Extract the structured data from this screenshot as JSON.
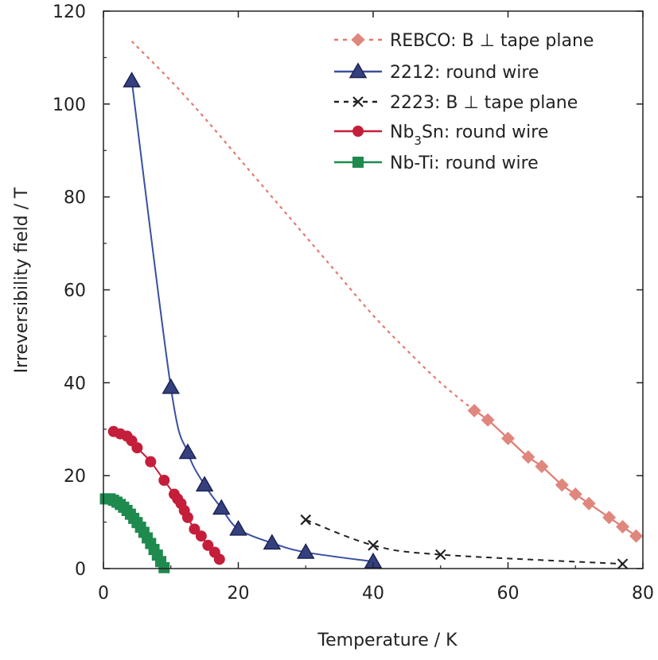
{
  "chart_data": {
    "type": "line",
    "xlabel": "Temperature / K",
    "ylabel": "Irreversibility field / T",
    "xlim": [
      0,
      80
    ],
    "ylim": [
      0,
      120
    ],
    "xticks": [
      "0",
      "20",
      "40",
      "60",
      "80"
    ],
    "yticks": [
      "0",
      "20",
      "40",
      "60",
      "80",
      "100",
      "120"
    ],
    "grid": false,
    "legend_position": "top-right",
    "series": [
      {
        "name": "REBCO: B ⊥ tape plane",
        "color": "#e07b70",
        "marker_color": "#e0877d",
        "marker": "diamond",
        "dashed_curve": {
          "x": [
            4.2,
            10,
            15,
            20,
            25,
            30,
            35,
            40,
            45,
            50,
            55
          ],
          "y": [
            113.5,
            105,
            97,
            88.5,
            80,
            71.5,
            63,
            54.5,
            47,
            40,
            34
          ]
        },
        "x": [
          55,
          57,
          60,
          63,
          65,
          68,
          70,
          72,
          75,
          77,
          79
        ],
        "y": [
          34,
          32,
          28,
          24,
          22,
          18,
          16,
          14,
          11,
          9,
          7
        ]
      },
      {
        "name": "2212: round wire",
        "color": "#3a4fa0",
        "marker_color": "#35407f",
        "marker": "triangle",
        "x": [
          4.2,
          10,
          12.5,
          15,
          17.5,
          20,
          25,
          30,
          40
        ],
        "y": [
          105,
          39,
          25,
          18,
          13,
          8.5,
          5.5,
          3.5,
          1.5
        ]
      },
      {
        "name": "2223: B ⊥ tape plane",
        "color": "#222222",
        "marker": "x",
        "x": [
          30,
          40,
          50,
          77
        ],
        "y": [
          10.5,
          5,
          3,
          1
        ]
      },
      {
        "name": "Nb",
        "name_sub": "3",
        "name_rest": "Sn: round wire",
        "color": "#c41e3a",
        "marker": "circle",
        "x": [
          1.5,
          2.5,
          3.5,
          4.2,
          5,
          7,
          9,
          10.5,
          11,
          11.5,
          12,
          12.5,
          13.5,
          14.5,
          15.5,
          16.5,
          17.2
        ],
        "y": [
          29.5,
          29,
          28.5,
          27.5,
          26,
          23,
          19,
          16,
          15,
          14,
          12.5,
          11,
          8.5,
          7,
          5,
          3.5,
          2
        ]
      },
      {
        "name": "Nb-Ti: round wire",
        "color": "#1e8a4e",
        "marker": "square",
        "x": [
          0.3,
          1,
          1.5,
          2,
          2.5,
          3,
          3.5,
          4,
          4.5,
          5,
          5.5,
          6,
          6.5,
          7,
          7.5,
          8,
          8.5,
          9
        ],
        "y": [
          15,
          15,
          14.7,
          14.3,
          13.8,
          13.2,
          12.5,
          11.7,
          10.8,
          9.9,
          8.9,
          7.8,
          6.6,
          5.4,
          4.1,
          2.9,
          1.5,
          0.2
        ]
      }
    ]
  }
}
